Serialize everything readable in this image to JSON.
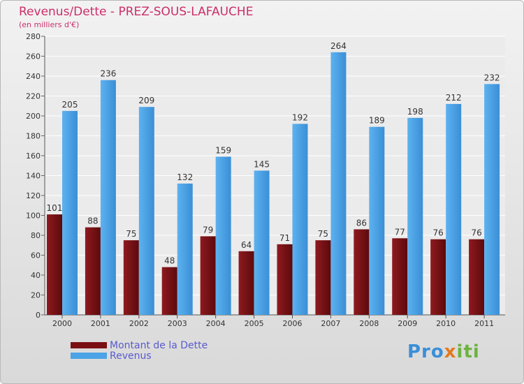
{
  "chart_data": {
    "type": "bar",
    "title": "Revenus/Dette - PREZ-SOUS-LAFAUCHE",
    "subtitle": "(en milliers d'€)",
    "categories": [
      "2000",
      "2001",
      "2002",
      "2003",
      "2004",
      "2005",
      "2006",
      "2007",
      "2008",
      "2009",
      "2010",
      "2011"
    ],
    "series": [
      {
        "name": "Montant de la Dette",
        "color": "#7a1014",
        "values": [
          101,
          88,
          75,
          48,
          79,
          64,
          71,
          75,
          86,
          77,
          76,
          76
        ]
      },
      {
        "name": "Revenus",
        "color": "#4aa3e6",
        "values": [
          205,
          236,
          209,
          132,
          159,
          145,
          192,
          264,
          189,
          198,
          212,
          232
        ]
      }
    ],
    "ylim": [
      0,
      280
    ],
    "yticks": [
      0,
      20,
      40,
      60,
      80,
      100,
      120,
      140,
      160,
      180,
      200,
      220,
      240,
      260,
      280
    ],
    "xlabel": "",
    "ylabel": "",
    "grid": true,
    "legend": "bottom-left"
  },
  "brand": {
    "part1": "Pro",
    "part2": "x",
    "part3": "iti"
  }
}
